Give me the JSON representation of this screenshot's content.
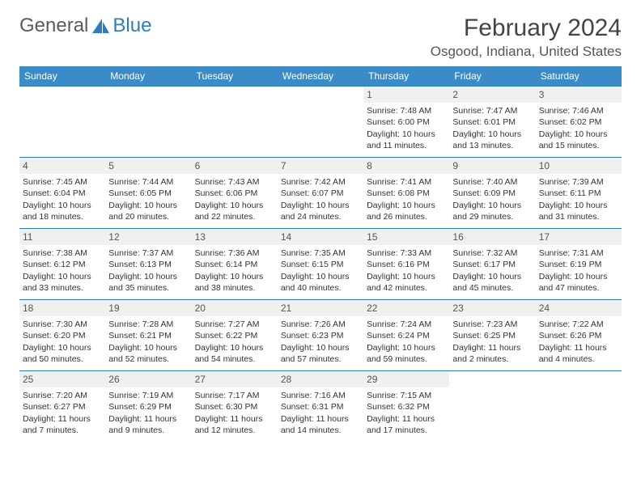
{
  "brand": {
    "part1": "General",
    "part2": "Blue"
  },
  "title": "February 2024",
  "location": "Osgood, Indiana, United States",
  "header_bg": "#3b8bc8",
  "border_color": "#2a7fbf",
  "daynum_bg": "#f0f0f0",
  "day_names": [
    "Sunday",
    "Monday",
    "Tuesday",
    "Wednesday",
    "Thursday",
    "Friday",
    "Saturday"
  ],
  "weeks": [
    [
      null,
      null,
      null,
      null,
      {
        "n": "1",
        "sr": "7:48 AM",
        "ss": "6:00 PM",
        "dl": "10 hours and 11 minutes."
      },
      {
        "n": "2",
        "sr": "7:47 AM",
        "ss": "6:01 PM",
        "dl": "10 hours and 13 minutes."
      },
      {
        "n": "3",
        "sr": "7:46 AM",
        "ss": "6:02 PM",
        "dl": "10 hours and 15 minutes."
      }
    ],
    [
      {
        "n": "4",
        "sr": "7:45 AM",
        "ss": "6:04 PM",
        "dl": "10 hours and 18 minutes."
      },
      {
        "n": "5",
        "sr": "7:44 AM",
        "ss": "6:05 PM",
        "dl": "10 hours and 20 minutes."
      },
      {
        "n": "6",
        "sr": "7:43 AM",
        "ss": "6:06 PM",
        "dl": "10 hours and 22 minutes."
      },
      {
        "n": "7",
        "sr": "7:42 AM",
        "ss": "6:07 PM",
        "dl": "10 hours and 24 minutes."
      },
      {
        "n": "8",
        "sr": "7:41 AM",
        "ss": "6:08 PM",
        "dl": "10 hours and 26 minutes."
      },
      {
        "n": "9",
        "sr": "7:40 AM",
        "ss": "6:09 PM",
        "dl": "10 hours and 29 minutes."
      },
      {
        "n": "10",
        "sr": "7:39 AM",
        "ss": "6:11 PM",
        "dl": "10 hours and 31 minutes."
      }
    ],
    [
      {
        "n": "11",
        "sr": "7:38 AM",
        "ss": "6:12 PM",
        "dl": "10 hours and 33 minutes."
      },
      {
        "n": "12",
        "sr": "7:37 AM",
        "ss": "6:13 PM",
        "dl": "10 hours and 35 minutes."
      },
      {
        "n": "13",
        "sr": "7:36 AM",
        "ss": "6:14 PM",
        "dl": "10 hours and 38 minutes."
      },
      {
        "n": "14",
        "sr": "7:35 AM",
        "ss": "6:15 PM",
        "dl": "10 hours and 40 minutes."
      },
      {
        "n": "15",
        "sr": "7:33 AM",
        "ss": "6:16 PM",
        "dl": "10 hours and 42 minutes."
      },
      {
        "n": "16",
        "sr": "7:32 AM",
        "ss": "6:17 PM",
        "dl": "10 hours and 45 minutes."
      },
      {
        "n": "17",
        "sr": "7:31 AM",
        "ss": "6:19 PM",
        "dl": "10 hours and 47 minutes."
      }
    ],
    [
      {
        "n": "18",
        "sr": "7:30 AM",
        "ss": "6:20 PM",
        "dl": "10 hours and 50 minutes."
      },
      {
        "n": "19",
        "sr": "7:28 AM",
        "ss": "6:21 PM",
        "dl": "10 hours and 52 minutes."
      },
      {
        "n": "20",
        "sr": "7:27 AM",
        "ss": "6:22 PM",
        "dl": "10 hours and 54 minutes."
      },
      {
        "n": "21",
        "sr": "7:26 AM",
        "ss": "6:23 PM",
        "dl": "10 hours and 57 minutes."
      },
      {
        "n": "22",
        "sr": "7:24 AM",
        "ss": "6:24 PM",
        "dl": "10 hours and 59 minutes."
      },
      {
        "n": "23",
        "sr": "7:23 AM",
        "ss": "6:25 PM",
        "dl": "11 hours and 2 minutes."
      },
      {
        "n": "24",
        "sr": "7:22 AM",
        "ss": "6:26 PM",
        "dl": "11 hours and 4 minutes."
      }
    ],
    [
      {
        "n": "25",
        "sr": "7:20 AM",
        "ss": "6:27 PM",
        "dl": "11 hours and 7 minutes."
      },
      {
        "n": "26",
        "sr": "7:19 AM",
        "ss": "6:29 PM",
        "dl": "11 hours and 9 minutes."
      },
      {
        "n": "27",
        "sr": "7:17 AM",
        "ss": "6:30 PM",
        "dl": "11 hours and 12 minutes."
      },
      {
        "n": "28",
        "sr": "7:16 AM",
        "ss": "6:31 PM",
        "dl": "11 hours and 14 minutes."
      },
      {
        "n": "29",
        "sr": "7:15 AM",
        "ss": "6:32 PM",
        "dl": "11 hours and 17 minutes."
      },
      null,
      null
    ]
  ],
  "labels": {
    "sunrise": "Sunrise: ",
    "sunset": "Sunset: ",
    "daylight": "Daylight: "
  }
}
